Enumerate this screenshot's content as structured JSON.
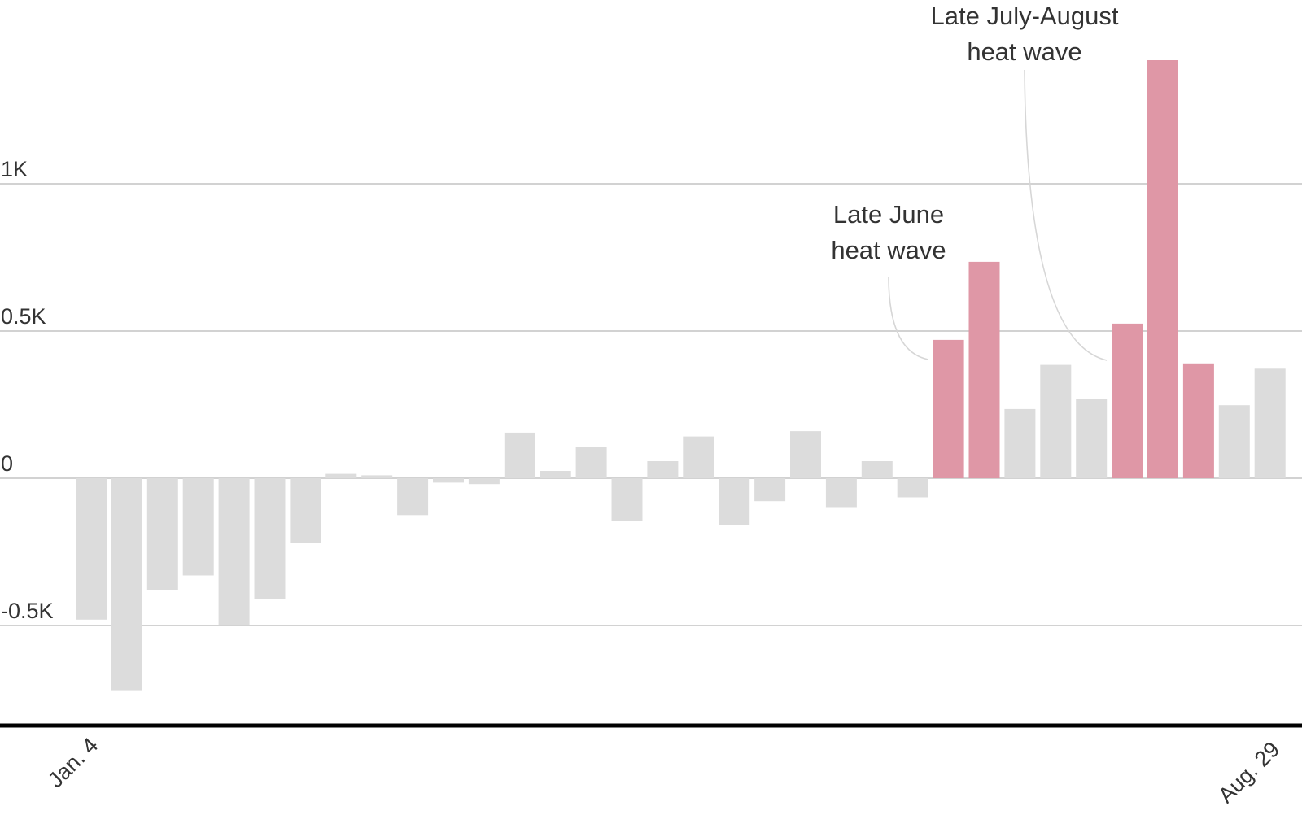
{
  "chart_data": {
    "type": "bar",
    "title": "",
    "xlabel": "",
    "ylabel": "",
    "ylim": [
      -0.84,
      1.4
    ],
    "grid": true,
    "y_ticks": [
      {
        "value": 1.0,
        "label": "1K"
      },
      {
        "value": 0.5,
        "label": "0.5K"
      },
      {
        "value": 0.0,
        "label": "0"
      },
      {
        "value": -0.5,
        "label": "-0.5K"
      }
    ],
    "x_tick_labels": [
      {
        "index": 0,
        "label": "Jan. 4"
      },
      {
        "index": 34,
        "label": "Aug. 29"
      }
    ],
    "values": [
      -0.48,
      -0.72,
      -0.38,
      -0.33,
      -0.5,
      -0.41,
      -0.22,
      0.015,
      0.01,
      -0.125,
      -0.015,
      -0.02,
      0.155,
      0.025,
      0.105,
      -0.145,
      0.058,
      0.142,
      -0.16,
      -0.078,
      0.16,
      -0.098,
      0.058,
      -0.065,
      0.47,
      0.735,
      0.235,
      0.385,
      0.27,
      0.525,
      1.42,
      0.39,
      0.248,
      0.372
    ],
    "highlight_indices": [
      24,
      25,
      29,
      30,
      31
    ],
    "colors": {
      "bar": "#dcdcdc",
      "highlight": "#df97a6",
      "grid": "#d2d2d2",
      "baseline": "#000000",
      "text": "#333333"
    },
    "annotations": [
      {
        "lines": [
          "Late June",
          "heat wave"
        ],
        "target_index": 24
      },
      {
        "lines": [
          "Late July-August",
          "heat wave"
        ],
        "target_index": 29
      }
    ]
  }
}
